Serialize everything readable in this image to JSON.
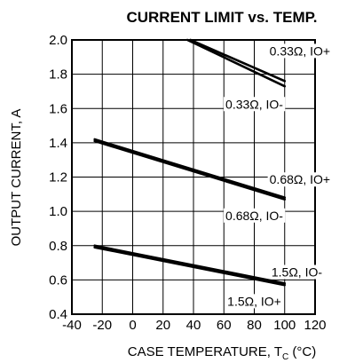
{
  "chart_data": {
    "type": "line",
    "title": "CURRENT LIMIT vs. TEMP.",
    "xlabel_main": "CASE TEMPERATURE, T",
    "xlabel_sub": "C",
    "xlabel_unit": " (°C)",
    "ylabel": "OUTPUT CURRENT, A",
    "xlim": [
      -40,
      120
    ],
    "ylim": [
      0.4,
      2.0
    ],
    "xticks": [
      "-40",
      "-20",
      "0",
      "20",
      "40",
      "60",
      "80",
      "100",
      "120"
    ],
    "yticks": [
      "0.4",
      "0.6",
      "0.8",
      "1.0",
      "1.2",
      "1.4",
      "1.6",
      "1.8",
      "2.0"
    ],
    "grid": true,
    "series": [
      {
        "name": "0.33Ω, IO+",
        "x": [
          38,
          100
        ],
        "y": [
          2.0,
          1.76
        ]
      },
      {
        "name": "0.33Ω, IO-",
        "x": [
          36,
          100
        ],
        "y": [
          2.0,
          1.73
        ]
      },
      {
        "name": "0.68Ω, IO+",
        "x": [
          -25,
          100
        ],
        "y": [
          1.42,
          1.08
        ]
      },
      {
        "name": "0.68Ω, IO-",
        "x": [
          -25,
          100
        ],
        "y": [
          1.41,
          1.07
        ]
      },
      {
        "name": "1.5Ω, IO-",
        "x": [
          -25,
          100
        ],
        "y": [
          0.8,
          0.58
        ]
      },
      {
        "name": "1.5Ω, IO+",
        "x": [
          -25,
          100
        ],
        "y": [
          0.79,
          0.57
        ]
      }
    ],
    "annotations": [
      {
        "text": "0.33Ω, IO+",
        "x": 110,
        "y": 1.91
      },
      {
        "text": "0.33Ω, IO-",
        "x": 80,
        "y": 1.6
      },
      {
        "text": "0.68Ω, IO+",
        "x": 110,
        "y": 1.16
      },
      {
        "text": "0.68Ω, IO-",
        "x": 80,
        "y": 0.95
      },
      {
        "text": "1.5Ω, IO-",
        "x": 108,
        "y": 0.62
      },
      {
        "text": "1.5Ω, IO+",
        "x": 80,
        "y": 0.45
      }
    ]
  }
}
